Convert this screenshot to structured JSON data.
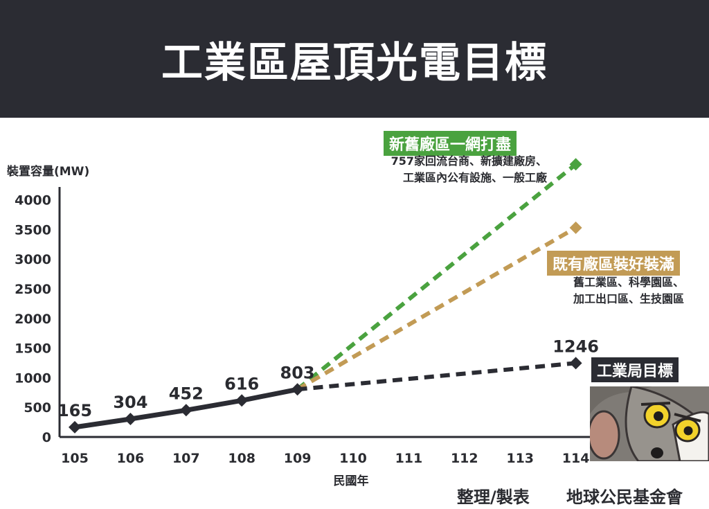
{
  "title": "工業區屋頂光電目標",
  "chart_data": {
    "type": "line",
    "ylabel": "裝置容量(MW)",
    "xlabel": "民國年",
    "categories": [
      "105",
      "106",
      "107",
      "108",
      "109",
      "110",
      "111",
      "112",
      "113",
      "114"
    ],
    "yticks": [
      "0",
      "500",
      "1000",
      "1500",
      "2000",
      "2500",
      "3000",
      "3500",
      "4000"
    ],
    "ylim": [
      0,
      4000
    ],
    "series": [
      {
        "name": "",
        "style": "solid",
        "color": "#2b2c33",
        "x": [
          105,
          106,
          107,
          108,
          109
        ],
        "values": [
          165,
          304,
          452,
          616,
          803
        ],
        "labels": [
          "165",
          "304",
          "452",
          "616",
          "803"
        ]
      },
      {
        "name": "工業局目標",
        "style": "dashed",
        "color": "#2b2c33",
        "x": [
          109,
          114
        ],
        "values": [
          803,
          1246
        ],
        "labels": [
          "",
          "1246"
        ]
      },
      {
        "name": "既有廠區裝好裝滿",
        "style": "dashed",
        "color": "#c29b55",
        "x": [
          109,
          114
        ],
        "values": [
          803,
          3530
        ],
        "labels": [
          "",
          ""
        ]
      },
      {
        "name": "新舊廠區一網打盡",
        "style": "dashed",
        "color": "#4aa23f",
        "x": [
          109,
          114
        ],
        "values": [
          803,
          4600
        ],
        "labels": [
          "",
          ""
        ]
      }
    ]
  },
  "annotations": {
    "green": {
      "title": "新舊廠區一網打盡",
      "desc1": "757家回流台商、新擴建廠房、",
      "desc2": "工業區內公有設施、一般工廠",
      "color": "#4aa23f"
    },
    "tan": {
      "title": "既有廠區裝好裝滿",
      "desc1": "舊工業區、科學園區、",
      "desc2": "加工出口區、生技園區",
      "color": "#c29b55"
    },
    "dark": {
      "title": "工業局目標",
      "color": "#2b2c33"
    }
  },
  "footer": {
    "credit": "整理/製表",
    "org": "地球公民基金會"
  }
}
